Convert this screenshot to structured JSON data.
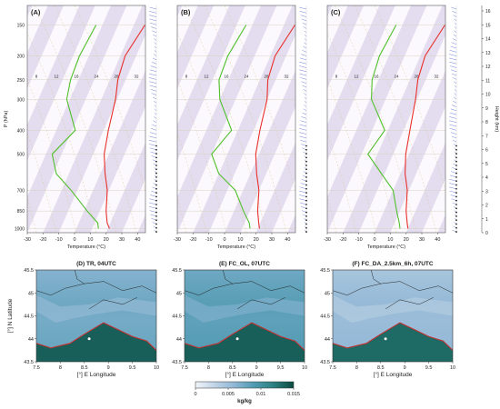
{
  "colors": {
    "temperature": "#e8302a",
    "dewpoint": "#4fbf2a",
    "stripe": "#e4dcef",
    "mixing": "#d9c58a",
    "wind": "#6f7fd9",
    "coast": "#c53030",
    "sea": "#4c95a8",
    "land_low": "#3f8f99",
    "land_high": "#0f4d45",
    "marker": "#ffffff"
  },
  "skewt": {
    "ylabel": "P (hPa)",
    "xlabel": "Temperature (°C)",
    "right_label": "Height (km)",
    "pressure_ticks": [
      "150",
      "200",
      "250",
      "300",
      "400",
      "500",
      "700",
      "850",
      "1000"
    ],
    "temp_ticks": [
      "-30",
      "-20",
      "-10",
      "0",
      "10",
      "20",
      "30",
      "40"
    ],
    "height_ticks": [
      "0",
      "1",
      "2",
      "3",
      "4",
      "5",
      "6",
      "7",
      "8",
      "9",
      "10",
      "11",
      "12",
      "13",
      "14",
      "15",
      "16"
    ],
    "mixing_labels": [
      "8",
      "12",
      "16",
      "24",
      "28",
      "32"
    ],
    "panels": [
      {
        "label": "(A)",
        "temperature": [
          [
            -13,
            150
          ],
          [
            -17,
            200
          ],
          [
            -15,
            250
          ],
          [
            -11,
            300
          ],
          [
            -7,
            400
          ],
          [
            -3,
            500
          ],
          [
            3,
            600
          ],
          [
            9,
            700
          ],
          [
            14,
            850
          ],
          [
            18,
            950
          ],
          [
            21,
            1000
          ]
        ],
        "dewpoint": [
          [
            -44,
            150
          ],
          [
            -46,
            200
          ],
          [
            -45,
            250
          ],
          [
            -42,
            300
          ],
          [
            -28,
            400
          ],
          [
            -36,
            500
          ],
          [
            -28,
            600
          ],
          [
            -14,
            700
          ],
          [
            2,
            850
          ],
          [
            12,
            950
          ],
          [
            14,
            1000
          ]
        ]
      },
      {
        "label": "(B)",
        "temperature": [
          [
            -13,
            150
          ],
          [
            -17,
            200
          ],
          [
            -15,
            250
          ],
          [
            -10,
            300
          ],
          [
            -6,
            400
          ],
          [
            -2,
            500
          ],
          [
            4,
            600
          ],
          [
            10,
            700
          ],
          [
            15,
            850
          ],
          [
            19,
            950
          ],
          [
            21,
            1000
          ]
        ],
        "dewpoint": [
          [
            -44,
            150
          ],
          [
            -47,
            200
          ],
          [
            -46,
            250
          ],
          [
            -40,
            300
          ],
          [
            -24,
            400
          ],
          [
            -30,
            500
          ],
          [
            -20,
            600
          ],
          [
            -5,
            700
          ],
          [
            6,
            850
          ],
          [
            13,
            950
          ],
          [
            15,
            1000
          ]
        ]
      },
      {
        "label": "(C)",
        "temperature": [
          [
            -13,
            150
          ],
          [
            -17,
            200
          ],
          [
            -15,
            250
          ],
          [
            -11,
            300
          ],
          [
            -6,
            400
          ],
          [
            -2,
            500
          ],
          [
            3,
            600
          ],
          [
            9,
            700
          ],
          [
            14,
            850
          ],
          [
            18,
            950
          ],
          [
            20,
            1000
          ]
        ],
        "dewpoint": [
          [
            -44,
            150
          ],
          [
            -46,
            200
          ],
          [
            -44,
            250
          ],
          [
            -39,
            300
          ],
          [
            -22,
            400
          ],
          [
            -26,
            500
          ],
          [
            -12,
            600
          ],
          [
            0,
            700
          ],
          [
            8,
            850
          ],
          [
            13,
            950
          ],
          [
            15,
            1000
          ]
        ]
      }
    ]
  },
  "maps": {
    "ylabel": "[°] N Latitude",
    "xlabel": "[°] E Longitude",
    "lat_ticks": [
      "43.5",
      "44",
      "44.5",
      "45",
      "45.5"
    ],
    "lon_ticks": [
      "7.5",
      "8",
      "8.5",
      "9",
      "9.5",
      "10"
    ],
    "panels": [
      {
        "label": "(D) TR, 04UTC",
        "sea_level": 0.48,
        "land_level": 0.62
      },
      {
        "label": "(E) FC_OL, 07UTC",
        "sea_level": 0.55,
        "land_level": 0.62
      },
      {
        "label": "(F) FC_DA_2.5km_6h, 07UTC",
        "sea_level": 0.35,
        "land_level": 0.58
      }
    ],
    "marker": {
      "lon": 8.6,
      "lat": 44.0
    }
  },
  "colorbar": {
    "ticks": [
      "0",
      "0.005",
      "0.01",
      "0.015"
    ],
    "unit": "kg/kg",
    "range": [
      0,
      0.015
    ],
    "stops": [
      "#f2f5fa",
      "#bfd3e6",
      "#8fb6d4",
      "#4f9ab1",
      "#2b7f7f",
      "#0b4a3f"
    ]
  },
  "chart_data": [
    {
      "type": "line",
      "title": "(A)",
      "xlabel": "Temperature (°C)",
      "ylabel": "P (hPa)",
      "xlim": [
        -30,
        45
      ],
      "ylim": [
        1000,
        125
      ],
      "series": [
        {
          "values": [
            [
              -13,
              150
            ],
            [
              -17,
              200
            ],
            [
              -15,
              250
            ],
            [
              -11,
              300
            ],
            [
              -7,
              400
            ],
            [
              -3,
              500
            ],
            [
              3,
              600
            ],
            [
              9,
              700
            ],
            [
              14,
              850
            ],
            [
              18,
              950
            ],
            [
              21,
              1000
            ]
          ]
        },
        {
          "values": [
            [
              -44,
              150
            ],
            [
              -46,
              200
            ],
            [
              -45,
              250
            ],
            [
              -42,
              300
            ],
            [
              -28,
              400
            ],
            [
              -36,
              500
            ],
            [
              -28,
              600
            ],
            [
              -14,
              700
            ],
            [
              2,
              850
            ],
            [
              12,
              950
            ],
            [
              14,
              1000
            ]
          ]
        }
      ]
    },
    {
      "type": "line",
      "title": "(B)",
      "xlabel": "Temperature (°C)",
      "xlim": [
        -30,
        45
      ],
      "ylim": [
        1000,
        125
      ],
      "series": [
        {
          "values": [
            [
              -13,
              150
            ],
            [
              -17,
              200
            ],
            [
              -15,
              250
            ],
            [
              -10,
              300
            ],
            [
              -6,
              400
            ],
            [
              -2,
              500
            ],
            [
              4,
              600
            ],
            [
              10,
              700
            ],
            [
              15,
              850
            ],
            [
              19,
              950
            ],
            [
              21,
              1000
            ]
          ]
        },
        {
          "values": [
            [
              -44,
              150
            ],
            [
              -47,
              200
            ],
            [
              -46,
              250
            ],
            [
              -40,
              300
            ],
            [
              -24,
              400
            ],
            [
              -30,
              500
            ],
            [
              -20,
              600
            ],
            [
              -5,
              700
            ],
            [
              6,
              850
            ],
            [
              13,
              950
            ],
            [
              15,
              1000
            ]
          ]
        }
      ]
    },
    {
      "type": "line",
      "title": "(C)",
      "xlabel": "Temperature (°C)",
      "ylabel": "Height (km)",
      "xlim": [
        -30,
        45
      ],
      "ylim": [
        1000,
        125
      ],
      "series": [
        {
          "values": [
            [
              -13,
              150
            ],
            [
              -17,
              200
            ],
            [
              -15,
              250
            ],
            [
              -11,
              300
            ],
            [
              -6,
              400
            ],
            [
              -2,
              500
            ],
            [
              3,
              600
            ],
            [
              9,
              700
            ],
            [
              14,
              850
            ],
            [
              18,
              950
            ],
            [
              20,
              1000
            ]
          ]
        },
        {
          "values": [
            [
              -44,
              150
            ],
            [
              -46,
              200
            ],
            [
              -44,
              250
            ],
            [
              -39,
              300
            ],
            [
              -22,
              400
            ],
            [
              -26,
              500
            ],
            [
              -12,
              600
            ],
            [
              0,
              700
            ],
            [
              8,
              850
            ],
            [
              13,
              950
            ],
            [
              15,
              1000
            ]
          ]
        }
      ]
    },
    {
      "type": "heatmap",
      "title": "(D) TR, 04UTC",
      "xlabel": "[°] E Longitude",
      "ylabel": "[°] N Latitude",
      "xlim": [
        7.5,
        10
      ],
      "ylim": [
        43.5,
        45.5
      ]
    },
    {
      "type": "heatmap",
      "title": "(E) FC_OL, 07UTC",
      "xlabel": "[°] E Longitude",
      "xlim": [
        7.5,
        10
      ],
      "ylim": [
        43.5,
        45.5
      ]
    },
    {
      "type": "heatmap",
      "title": "(F) FC_DA_2.5km_6h, 07UTC",
      "xlabel": "[°] E Longitude",
      "xlim": [
        7.5,
        10
      ],
      "ylim": [
        43.5,
        45.5
      ]
    }
  ]
}
